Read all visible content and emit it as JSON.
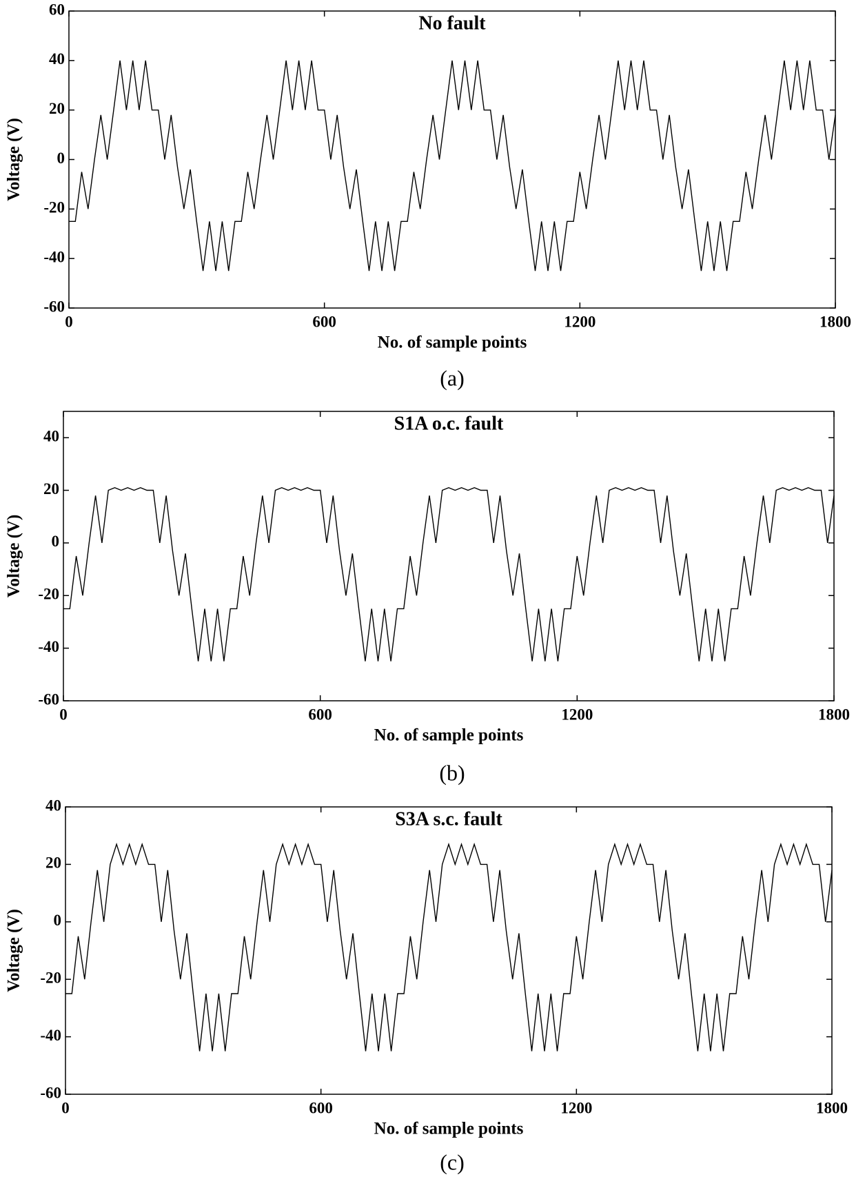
{
  "chart_data": [
    {
      "type": "line",
      "title": "No fault",
      "xlabel": "No. of sample points",
      "ylabel": "Voltage (V)",
      "caption": "(a)",
      "xlim": [
        0,
        1800
      ],
      "xticks": [
        0,
        600,
        1200,
        1800
      ],
      "ylim": [
        -60,
        60
      ],
      "yticks": [
        -60,
        -40,
        -20,
        0,
        20,
        40,
        60
      ],
      "color": "#000000",
      "x": [
        0,
        15,
        30,
        45,
        60,
        75,
        90,
        105,
        120,
        135,
        150,
        165,
        180,
        195,
        210,
        225,
        240,
        255,
        270,
        285,
        300,
        315,
        330,
        345,
        360,
        375,
        390,
        405,
        420,
        435,
        450,
        465,
        480,
        495,
        510,
        525,
        540,
        555,
        570,
        585,
        600,
        615,
        630,
        645,
        660,
        675,
        690,
        705,
        720,
        735,
        750,
        765,
        780,
        795,
        810,
        825,
        840,
        855,
        870,
        885,
        900,
        915,
        930,
        945,
        960,
        975,
        990,
        1005,
        1020,
        1035,
        1050,
        1065,
        1080,
        1095,
        1110,
        1125,
        1140,
        1155,
        1170,
        1185,
        1200,
        1215,
        1230,
        1245,
        1260,
        1275,
        1290,
        1305,
        1320,
        1335,
        1350,
        1365,
        1380,
        1395,
        1410,
        1425,
        1440,
        1455,
        1470,
        1485,
        1500,
        1515,
        1530,
        1545,
        1560,
        1575,
        1590,
        1605,
        1620,
        1635,
        1650,
        1665,
        1680,
        1695,
        1710,
        1725,
        1740,
        1755,
        1770,
        1785,
        1800
      ],
      "values": [
        -25,
        -25,
        -5,
        -20,
        0,
        18,
        0,
        20,
        40,
        20,
        40,
        20,
        40,
        20,
        20,
        0,
        18,
        -3,
        -20,
        -4,
        -25,
        -45,
        -25,
        -45,
        -25,
        -45,
        -25,
        -25,
        -5,
        -20,
        0,
        18,
        0,
        20,
        40,
        20,
        40,
        20,
        40,
        20,
        20,
        0,
        18,
        -3,
        -20,
        -4,
        -25,
        -45,
        -25,
        -45,
        -25,
        -45,
        -25,
        -25,
        -5,
        -20,
        0,
        18,
        0,
        20,
        40,
        20,
        40,
        20,
        40,
        20,
        20,
        0,
        18,
        -3,
        -20,
        -4,
        -25,
        -45,
        -25,
        -45,
        -25,
        -45,
        -25,
        -25,
        -5,
        -20,
        0,
        18,
        0,
        20,
        40,
        20,
        40,
        20,
        40,
        20,
        20,
        0,
        18,
        -3,
        -20,
        -4,
        -25,
        -45,
        -25,
        -45,
        -25,
        -45,
        -25,
        -25,
        -5,
        -20,
        0,
        18,
        0,
        20,
        40,
        20,
        40,
        20,
        40,
        20,
        20,
        0,
        18
      ]
    },
    {
      "type": "line",
      "title": "S1A o.c. fault",
      "xlabel": "No. of sample points",
      "ylabel": "Voltage (V)",
      "caption": "(b)",
      "xlim": [
        0,
        1800
      ],
      "xticks": [
        0,
        600,
        1200,
        1800
      ],
      "ylim": [
        -60,
        50
      ],
      "yticks": [
        -60,
        -40,
        -20,
        0,
        20,
        40
      ],
      "color": "#000000",
      "x": [
        0,
        15,
        30,
        45,
        60,
        75,
        90,
        105,
        120,
        135,
        150,
        165,
        180,
        195,
        210,
        225,
        240,
        255,
        270,
        285,
        300,
        315,
        330,
        345,
        360,
        375,
        390,
        405,
        420,
        435,
        450,
        465,
        480,
        495,
        510,
        525,
        540,
        555,
        570,
        585,
        600,
        615,
        630,
        645,
        660,
        675,
        690,
        705,
        720,
        735,
        750,
        765,
        780,
        795,
        810,
        825,
        840,
        855,
        870,
        885,
        900,
        915,
        930,
        945,
        960,
        975,
        990,
        1005,
        1020,
        1035,
        1050,
        1065,
        1080,
        1095,
        1110,
        1125,
        1140,
        1155,
        1170,
        1185,
        1200,
        1215,
        1230,
        1245,
        1260,
        1275,
        1290,
        1305,
        1320,
        1335,
        1350,
        1365,
        1380,
        1395,
        1410,
        1425,
        1440,
        1455,
        1470,
        1485,
        1500,
        1515,
        1530,
        1545,
        1560,
        1575,
        1590,
        1605,
        1620,
        1635,
        1650,
        1665,
        1680,
        1695,
        1710,
        1725,
        1740,
        1755,
        1770,
        1785,
        1800
      ],
      "values": [
        -25,
        -25,
        -5,
        -20,
        0,
        18,
        0,
        20,
        21,
        20,
        21,
        20,
        21,
        20,
        20,
        0,
        18,
        -3,
        -20,
        -4,
        -25,
        -45,
        -25,
        -45,
        -25,
        -45,
        -25,
        -25,
        -5,
        -20,
        0,
        18,
        0,
        20,
        21,
        20,
        21,
        20,
        21,
        20,
        20,
        0,
        18,
        -3,
        -20,
        -4,
        -25,
        -45,
        -25,
        -45,
        -25,
        -45,
        -25,
        -25,
        -5,
        -20,
        0,
        18,
        0,
        20,
        21,
        20,
        21,
        20,
        21,
        20,
        20,
        0,
        18,
        -3,
        -20,
        -4,
        -25,
        -45,
        -25,
        -45,
        -25,
        -45,
        -25,
        -25,
        -5,
        -20,
        0,
        18,
        0,
        20,
        21,
        20,
        21,
        20,
        21,
        20,
        20,
        0,
        18,
        -3,
        -20,
        -4,
        -25,
        -45,
        -25,
        -45,
        -25,
        -45,
        -25,
        -25,
        -5,
        -20,
        0,
        18,
        0,
        20,
        21,
        20,
        21,
        20,
        21,
        20,
        20,
        0,
        18
      ]
    },
    {
      "type": "line",
      "title": "S3A s.c. fault",
      "xlabel": "No. of sample points",
      "ylabel": "Voltage (V)",
      "caption": "(c)",
      "xlim": [
        0,
        1800
      ],
      "xticks": [
        0,
        600,
        1200,
        1800
      ],
      "ylim": [
        -60,
        40
      ],
      "yticks": [
        -60,
        -40,
        -20,
        0,
        20,
        40
      ],
      "color": "#000000",
      "x": [
        0,
        15,
        30,
        45,
        60,
        75,
        90,
        105,
        120,
        135,
        150,
        165,
        180,
        195,
        210,
        225,
        240,
        255,
        270,
        285,
        300,
        315,
        330,
        345,
        360,
        375,
        390,
        405,
        420,
        435,
        450,
        465,
        480,
        495,
        510,
        525,
        540,
        555,
        570,
        585,
        600,
        615,
        630,
        645,
        660,
        675,
        690,
        705,
        720,
        735,
        750,
        765,
        780,
        795,
        810,
        825,
        840,
        855,
        870,
        885,
        900,
        915,
        930,
        945,
        960,
        975,
        990,
        1005,
        1020,
        1035,
        1050,
        1065,
        1080,
        1095,
        1110,
        1125,
        1140,
        1155,
        1170,
        1185,
        1200,
        1215,
        1230,
        1245,
        1260,
        1275,
        1290,
        1305,
        1320,
        1335,
        1350,
        1365,
        1380,
        1395,
        1410,
        1425,
        1440,
        1455,
        1470,
        1485,
        1500,
        1515,
        1530,
        1545,
        1560,
        1575,
        1590,
        1605,
        1620,
        1635,
        1650,
        1665,
        1680,
        1695,
        1710,
        1725,
        1740,
        1755,
        1770,
        1785,
        1800
      ],
      "values": [
        -25,
        -25,
        -5,
        -20,
        0,
        18,
        0,
        20,
        27,
        20,
        27,
        20,
        27,
        20,
        20,
        0,
        18,
        -3,
        -20,
        -4,
        -25,
        -45,
        -25,
        -45,
        -25,
        -45,
        -25,
        -25,
        -5,
        -20,
        0,
        18,
        0,
        20,
        27,
        20,
        27,
        20,
        27,
        20,
        20,
        0,
        18,
        -3,
        -20,
        -4,
        -25,
        -45,
        -25,
        -45,
        -25,
        -45,
        -25,
        -25,
        -5,
        -20,
        0,
        18,
        0,
        20,
        27,
        20,
        27,
        20,
        27,
        20,
        20,
        0,
        18,
        -3,
        -20,
        -4,
        -25,
        -45,
        -25,
        -45,
        -25,
        -45,
        -25,
        -25,
        -5,
        -20,
        0,
        18,
        0,
        20,
        27,
        20,
        27,
        20,
        27,
        20,
        20,
        0,
        18,
        -3,
        -20,
        -4,
        -25,
        -45,
        -25,
        -45,
        -25,
        -45,
        -25,
        -25,
        -5,
        -20,
        0,
        18,
        0,
        20,
        27,
        20,
        27,
        20,
        27,
        20,
        20,
        0,
        18
      ]
    }
  ]
}
